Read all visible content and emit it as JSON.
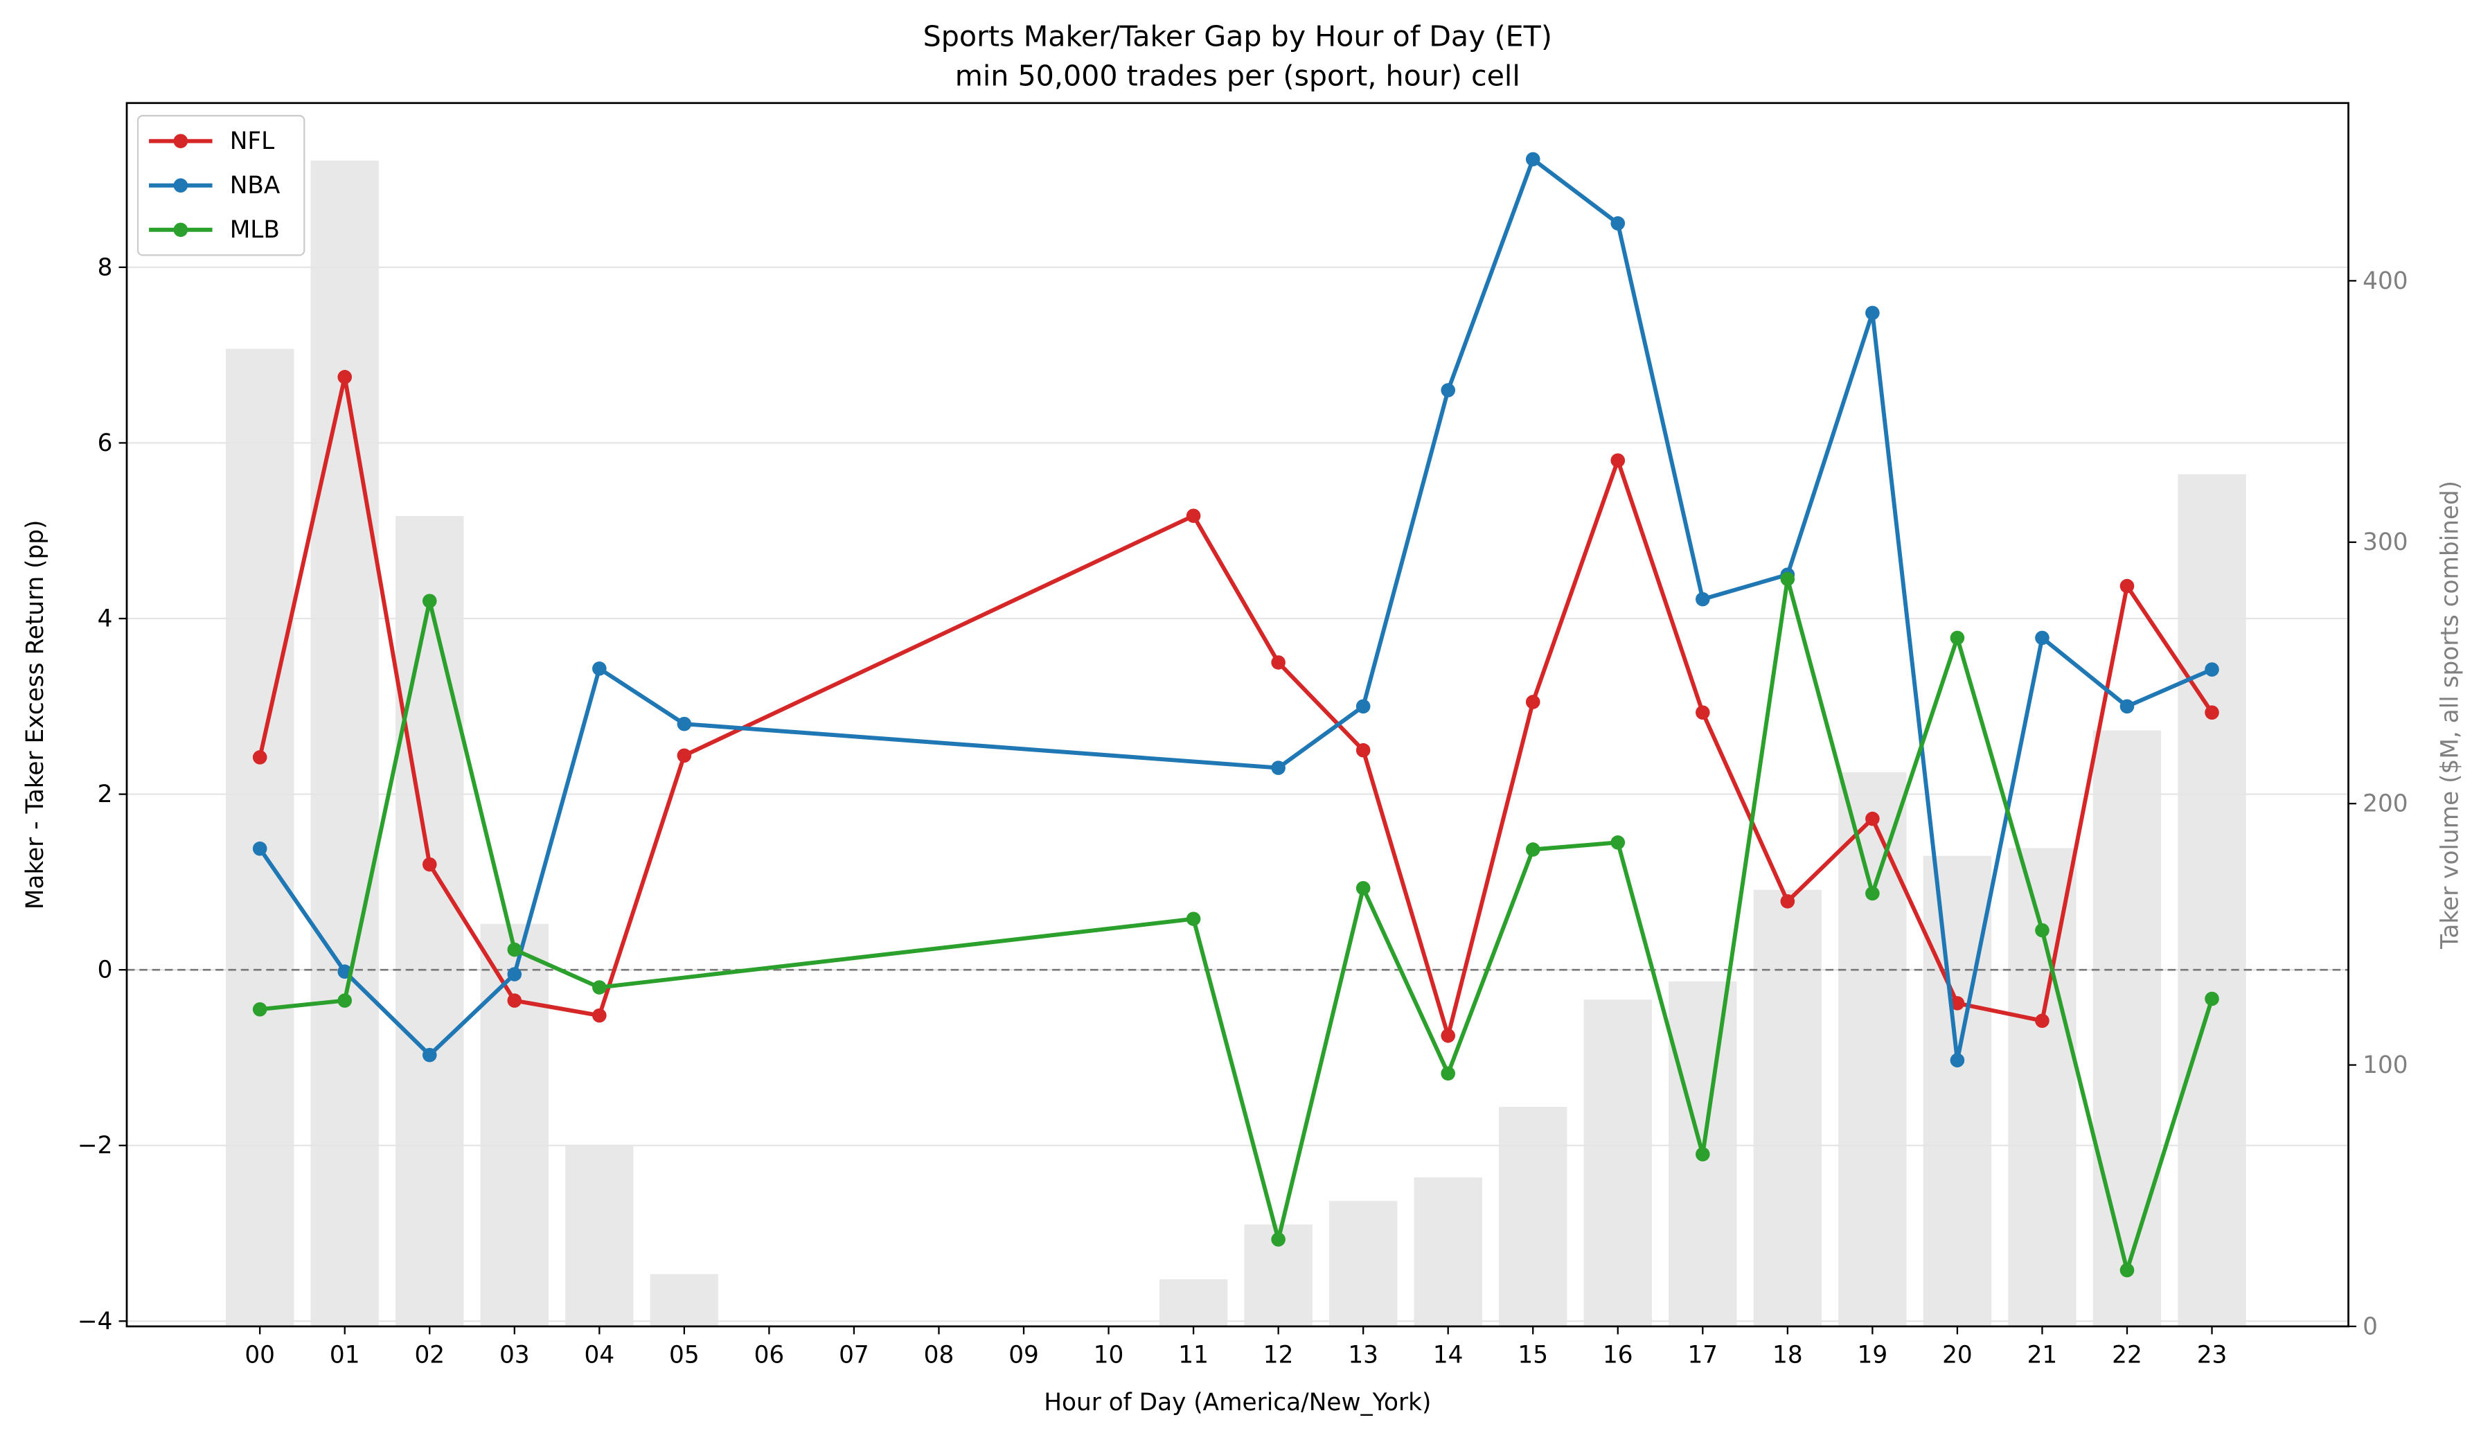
{
  "chart_data": {
    "type": "line",
    "title": "Sports Maker/Taker Gap by Hour of Day (ET)",
    "subtitle": "min 50,000 trades per (sport, hour) cell",
    "xlabel": "Hour of Day (America/New_York)",
    "ylabel": "Maker - Taker Excess Return (pp)",
    "ylabel_right": "Taker volume ($M, all sports combined)",
    "categories": [
      "00",
      "01",
      "02",
      "03",
      "04",
      "05",
      "06",
      "07",
      "08",
      "09",
      "10",
      "11",
      "12",
      "13",
      "14",
      "15",
      "16",
      "17",
      "18",
      "19",
      "20",
      "21",
      "22",
      "23"
    ],
    "ylim": [
      -4.06,
      9.87
    ],
    "ylim_right": [
      0,
      468
    ],
    "yticks": [
      -4,
      -2,
      0,
      2,
      4,
      6,
      8
    ],
    "yticks_right": [
      0,
      100,
      200,
      300,
      400
    ],
    "grid": "horizontal",
    "zero_line": "dashed",
    "legend_placement": "top-left",
    "series": [
      {
        "name": "NFL",
        "color": "#d62728",
        "values": [
          2.42,
          6.75,
          1.2,
          -0.35,
          -0.52,
          2.44,
          null,
          null,
          null,
          null,
          null,
          5.17,
          3.5,
          2.5,
          -0.75,
          3.05,
          5.8,
          2.93,
          0.78,
          1.72,
          -0.38,
          -0.58,
          4.37,
          2.93
        ]
      },
      {
        "name": "NBA",
        "color": "#1f77b4",
        "values": [
          1.38,
          -0.02,
          -0.97,
          -0.05,
          3.43,
          2.8,
          null,
          null,
          null,
          null,
          null,
          null,
          2.3,
          3.0,
          6.6,
          9.23,
          8.5,
          4.22,
          4.5,
          7.48,
          -1.03,
          3.78,
          3.0,
          3.42
        ]
      },
      {
        "name": "MLB",
        "color": "#2ca02c",
        "values": [
          -0.45,
          -0.35,
          4.2,
          0.23,
          -0.2,
          null,
          null,
          null,
          null,
          null,
          null,
          0.58,
          -3.07,
          0.93,
          -1.18,
          1.37,
          1.45,
          -2.1,
          4.45,
          0.87,
          3.78,
          0.45,
          -3.42,
          -0.33
        ]
      }
    ],
    "bars": {
      "axis": "right",
      "color": "#e8e8e8",
      "values": [
        374,
        446,
        310,
        154,
        69,
        20,
        null,
        null,
        null,
        null,
        null,
        18,
        39,
        48,
        57,
        84,
        125,
        132,
        167,
        212,
        180,
        183,
        228,
        326
      ]
    }
  }
}
